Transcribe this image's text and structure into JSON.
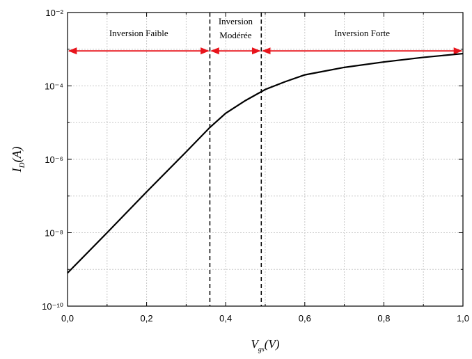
{
  "chart_data": {
    "type": "line",
    "log_y": true,
    "grid": true,
    "xlabel": [
      "V",
      "gs",
      "(V)"
    ],
    "ylabel": [
      "I",
      "D",
      "(A)"
    ],
    "x": [
      0,
      0.1,
      0.2,
      0.3,
      0.36,
      0.4,
      0.45,
      0.5,
      0.55,
      0.6,
      0.7,
      0.8,
      0.9,
      1.0
    ],
    "series": [
      {
        "color": "#000000",
        "values": [
          8e-10,
          1e-08,
          1.3e-07,
          1.6e-06,
          7.4e-06,
          1.8e-05,
          4e-05,
          8e-05,
          0.00013,
          0.0002,
          0.00032,
          0.00045,
          0.0006,
          0.00076
        ]
      }
    ],
    "xlim": [
      0,
      1.0
    ],
    "ylim": [
      1e-10,
      0.01
    ],
    "xticks": [
      {
        "value": 0,
        "label": "0,0"
      },
      {
        "value": 0.2,
        "label": "0,2"
      },
      {
        "value": 0.4,
        "label": "0,4"
      },
      {
        "value": 0.6,
        "label": "0,6"
      },
      {
        "value": 0.8,
        "label": "0,8"
      },
      {
        "value": 1.0,
        "label": "1,0"
      }
    ],
    "yticks": [
      {
        "value": 1e-10,
        "label": "10⁻¹⁰"
      },
      {
        "value": 1e-08,
        "label": "10⁻⁸"
      },
      {
        "value": 1e-06,
        "label": "10⁻⁶"
      },
      {
        "value": 0.0001,
        "label": "10⁻⁴"
      },
      {
        "value": 0.01,
        "label": "10⁻²"
      }
    ],
    "xminor": [
      0.1,
      0.3,
      0.5,
      0.7,
      0.9
    ],
    "yminor": [
      1e-09,
      1e-07,
      1e-05,
      0.001
    ],
    "boundaries": [
      0.36,
      0.49
    ],
    "arrow_level": 0.0009,
    "arrow_color": "#e8141c",
    "regions": [
      {
        "label": [
          "Inversion Faible"
        ],
        "from": 0,
        "to": 0.36
      },
      {
        "label": [
          "Inversion",
          "Modérée"
        ],
        "from": 0.36,
        "to": 0.49
      },
      {
        "label": [
          "Inversion Forte"
        ],
        "from": 0.49,
        "to": 1.0
      }
    ]
  }
}
